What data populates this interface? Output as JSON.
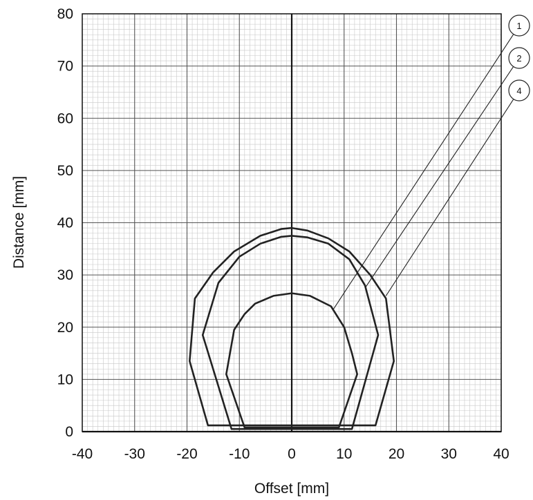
{
  "chart_data": {
    "type": "line",
    "xlabel": "Offset [mm]",
    "ylabel": "Distance [mm]",
    "xlim": [
      -40,
      40
    ],
    "ylim": [
      0,
      80
    ],
    "x_ticks": [
      "-40",
      "-30",
      "-20",
      "-10",
      "0",
      "10",
      "20",
      "30",
      "40"
    ],
    "y_ticks": [
      "0",
      "10",
      "20",
      "30",
      "40",
      "50",
      "60",
      "70",
      "80"
    ],
    "grid": true,
    "colors": {
      "curve": "#222222",
      "major_grid": "#555555",
      "minor_grid": "#c8c8c8",
      "axis": "#111111"
    },
    "series": [
      {
        "name": "1",
        "points": [
          [
            -9,
            0.8
          ],
          [
            -12.5,
            11
          ],
          [
            -11,
            19.5
          ],
          [
            -9,
            22.5
          ],
          [
            -7,
            24.5
          ],
          [
            -3.5,
            26
          ],
          [
            0,
            26.5
          ],
          [
            3.5,
            26
          ],
          [
            7.5,
            24
          ],
          [
            10,
            20
          ],
          [
            11.5,
            15
          ],
          [
            12.5,
            11
          ],
          [
            9,
            0.8
          ]
        ],
        "callout_anchor": [
          8,
          23.5
        ]
      },
      {
        "name": "2",
        "points": [
          [
            -11.5,
            0.5
          ],
          [
            -17,
            18.5
          ],
          [
            -14,
            28.5
          ],
          [
            -10,
            33.5
          ],
          [
            -6,
            36
          ],
          [
            -2,
            37.3
          ],
          [
            0,
            37.5
          ],
          [
            3,
            37.2
          ],
          [
            7,
            36
          ],
          [
            11,
            33
          ],
          [
            14,
            28
          ],
          [
            16.5,
            18.5
          ],
          [
            11.5,
            0.5
          ]
        ],
        "callout_anchor": [
          14,
          27.5
        ]
      },
      {
        "name": "4",
        "points": [
          [
            -16,
            1.2
          ],
          [
            -19.5,
            13.5
          ],
          [
            -18.5,
            25.5
          ],
          [
            -15,
            30.5
          ],
          [
            -11,
            34.5
          ],
          [
            -6,
            37.5
          ],
          [
            -2,
            38.8
          ],
          [
            0,
            39
          ],
          [
            3,
            38.5
          ],
          [
            7,
            37
          ],
          [
            11,
            34.5
          ],
          [
            15,
            30
          ],
          [
            18,
            25.5
          ],
          [
            19.5,
            13.5
          ],
          [
            16,
            1.2
          ]
        ],
        "callout_anchor": [
          18,
          26
        ]
      }
    ]
  }
}
